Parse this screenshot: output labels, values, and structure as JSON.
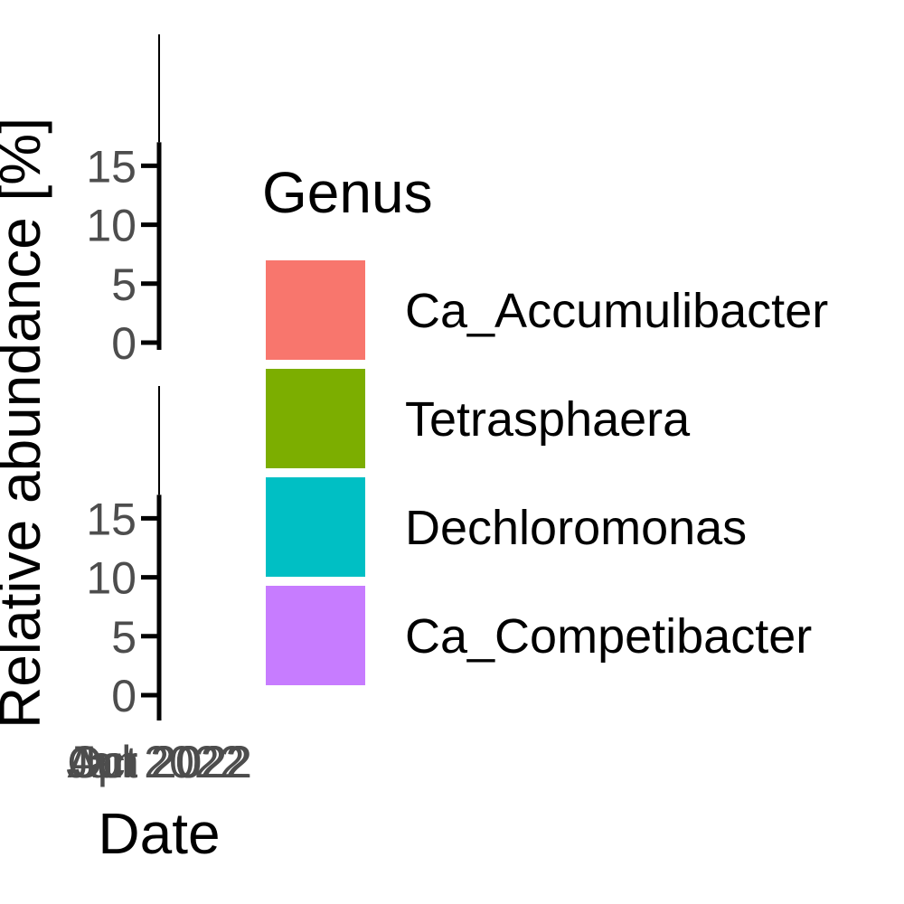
{
  "chart_data": {
    "type": "area",
    "xlabel": "Date",
    "ylabel": "Relative abundance [%]",
    "x_tick_labels": [
      "Jan 2022",
      "Apr 2022",
      "Jul 2022",
      "Oct 2022"
    ],
    "y_tick_labels": [
      "0",
      "5",
      "10",
      "15"
    ],
    "ylim": [
      0,
      17
    ],
    "panels": 2,
    "legend": {
      "title": "Genus",
      "position": "right",
      "entries": [
        {
          "name": "Ca_Accumulibacter",
          "color": "#F8766D"
        },
        {
          "name": "Tetrasphaera",
          "color": "#7CAE00"
        },
        {
          "name": "Dechloromonas",
          "color": "#00BFC4"
        },
        {
          "name": "Ca_Competibacter",
          "color": "#C77CFF"
        }
      ]
    },
    "grid": false
  }
}
